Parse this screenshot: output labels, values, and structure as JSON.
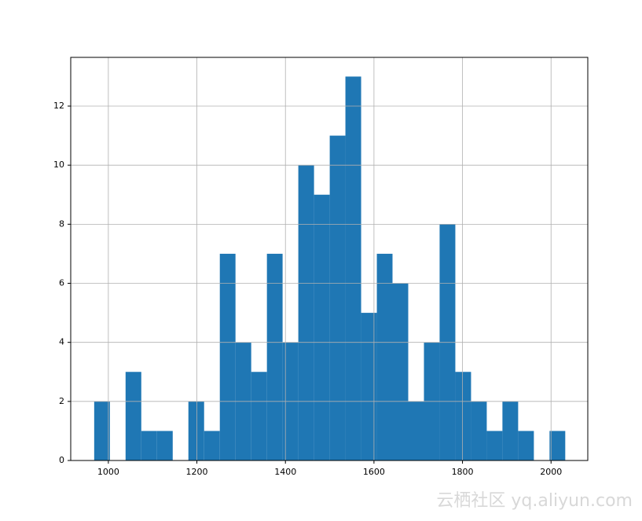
{
  "chart_data": {
    "type": "histogram",
    "bins": [
      968,
      1003.5,
      1038.9,
      1074.4,
      1109.9,
      1145.4,
      1180.8,
      1216.3,
      1251.8,
      1287.2,
      1322.7,
      1358.2,
      1393.6,
      1429.1,
      1464.6,
      1500.1,
      1535.5,
      1571,
      1606.5,
      1641.9,
      1677.4,
      1712.9,
      1748.3,
      1783.8,
      1819.3,
      1854.8,
      1890.2,
      1925.7,
      1961.2,
      1996.6,
      2032.1
    ],
    "values": [
      2,
      0,
      3,
      1,
      1,
      0,
      2,
      1,
      7,
      4,
      3,
      7,
      4,
      10,
      9,
      11,
      13,
      5,
      7,
      6,
      2,
      4,
      8,
      3,
      2,
      1,
      2,
      1,
      0,
      1
    ],
    "color": "#1f77b4",
    "xlim": [
      915,
      2083
    ],
    "xticks": [
      1000,
      1200,
      1400,
      1600,
      1800,
      2000
    ],
    "ylim": [
      0,
      13.65
    ],
    "yticks": [
      0,
      2,
      4,
      6,
      8,
      10,
      12
    ],
    "grid": true
  },
  "watermark": "云栖社区 yq.aliyun.com"
}
